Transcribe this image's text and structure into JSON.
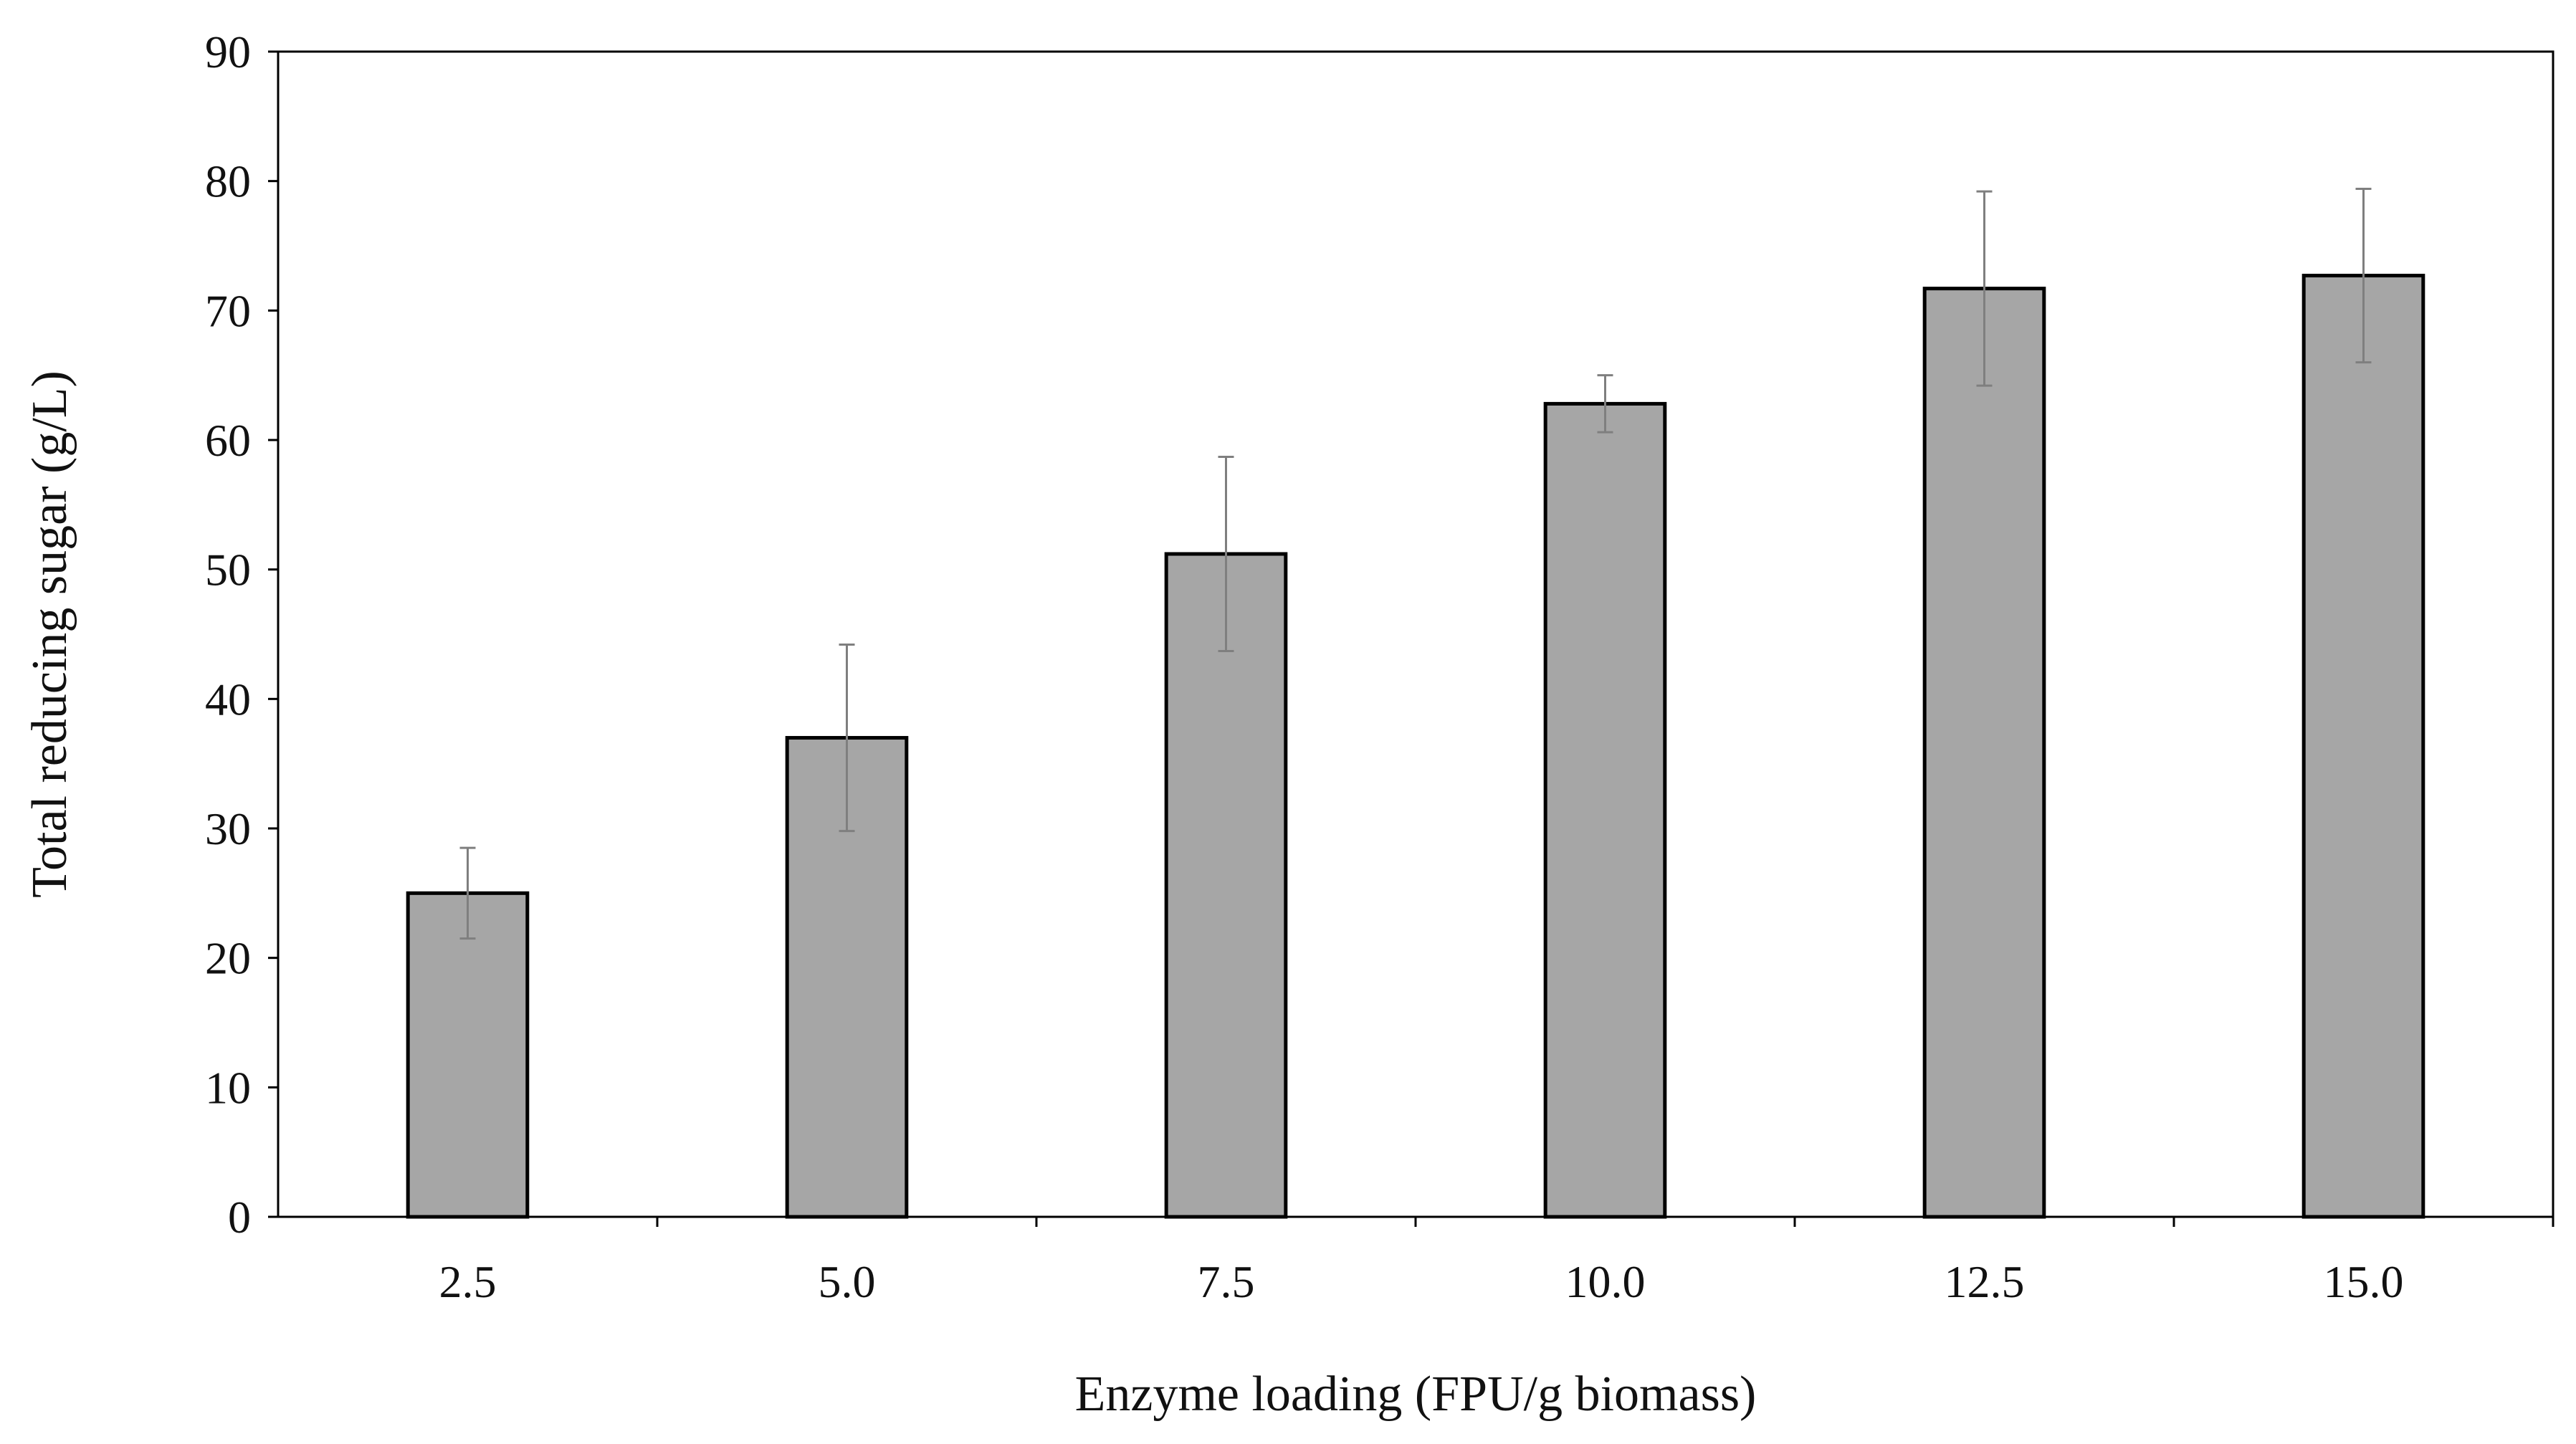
{
  "chart_data": {
    "type": "bar",
    "title": "",
    "xlabel": "Enzyme loading (FPU/g biomass)",
    "ylabel": "Total reducing sugar (g/L)",
    "categories": [
      "2.5",
      "5.0",
      "7.5",
      "10.0",
      "12.5",
      "15.0"
    ],
    "series": [
      {
        "values": [
          25.0,
          37.0,
          51.2,
          62.8,
          71.7,
          72.7
        ],
        "error": [
          3.5,
          7.2,
          7.5,
          2.2,
          7.5,
          6.7
        ]
      }
    ],
    "ylim": [
      0,
      90
    ],
    "yticks": [
      "0",
      "10",
      "20",
      "30",
      "40",
      "50",
      "60",
      "70",
      "80",
      "90"
    ],
    "grid": false,
    "legend": "none",
    "colors": {
      "bar_fill": "#a6a6a6",
      "bar_stroke": "#000000",
      "error_bar": "#7f7f7f",
      "axis": "#000000"
    }
  }
}
